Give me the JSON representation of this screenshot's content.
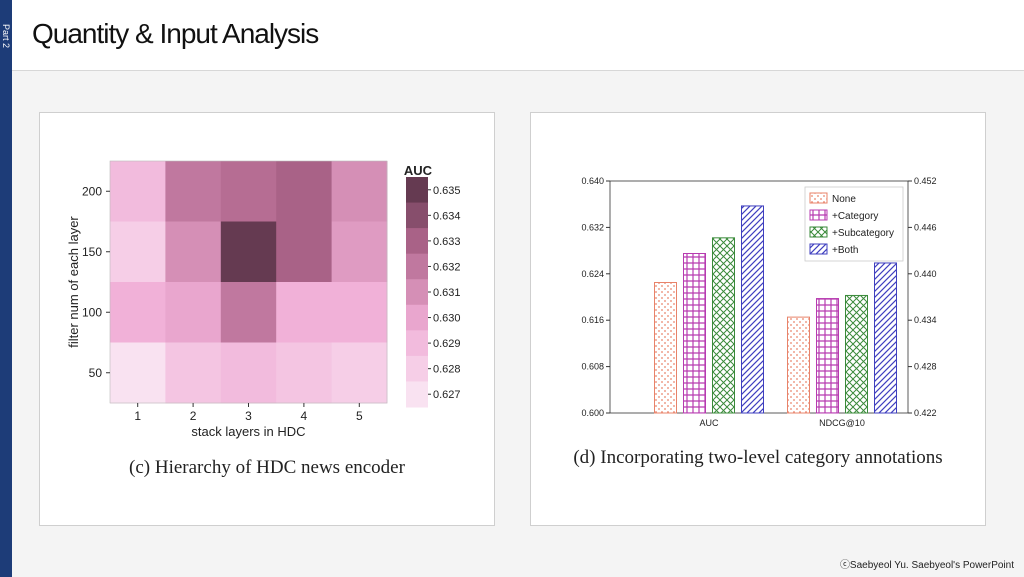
{
  "side_label": "Part 2",
  "page_title": "Quantity & Input Analysis",
  "credit": "ⓒSaebyeol Yu. Saebyeol's PowerPoint",
  "chart_data": [
    {
      "type": "heatmap",
      "caption": "(c) Hierarchy of HDC news encoder",
      "xlabel": "stack layers in HDC",
      "ylabel": "filter num of each layer",
      "x": [
        "1",
        "2",
        "3",
        "4",
        "5"
      ],
      "y": [
        "200",
        "150",
        "100",
        "50"
      ],
      "values": [
        [
          0.629,
          0.632,
          0.6325,
          0.633,
          0.631
        ],
        [
          0.628,
          0.631,
          0.635,
          0.633,
          0.6305
        ],
        [
          0.6295,
          0.63,
          0.632,
          0.6295,
          0.6295
        ],
        [
          0.627,
          0.6285,
          0.629,
          0.6285,
          0.628
        ]
      ],
      "colorbar": {
        "title": "AUC",
        "min": 0.6265,
        "max": 0.6355,
        "ticks": [
          "0.635",
          "0.634",
          "0.633",
          "0.632",
          "0.631",
          "0.630",
          "0.629",
          "0.628",
          "0.627"
        ]
      }
    },
    {
      "type": "bar",
      "caption": "(d) Incorporating two-level category annotations",
      "categories": [
        "AUC",
        "NDCG@10"
      ],
      "series": [
        {
          "name": "None",
          "color": "#e8836a",
          "pattern": "dots",
          "values": [
            0.6225,
            0.4344
          ]
        },
        {
          "name": "+Category",
          "color": "#b73bb0",
          "pattern": "grid",
          "values": [
            0.6275,
            0.4368
          ]
        },
        {
          "name": "+Subcategory",
          "color": "#3a8a3a",
          "pattern": "cross",
          "values": [
            0.6302,
            0.4372
          ]
        },
        {
          "name": "+Both",
          "color": "#3f3fbf",
          "pattern": "diagonal",
          "values": [
            0.6357,
            0.4414
          ]
        }
      ],
      "y_left": {
        "min": 0.6,
        "max": 0.64,
        "ticks": [
          "0.600",
          "0.608",
          "0.616",
          "0.624",
          "0.632",
          "0.640"
        ]
      },
      "y_right": {
        "min": 0.422,
        "max": 0.452,
        "ticks": [
          "0.422",
          "0.428",
          "0.434",
          "0.440",
          "0.446",
          "0.452"
        ]
      },
      "legend": "top-right"
    }
  ]
}
